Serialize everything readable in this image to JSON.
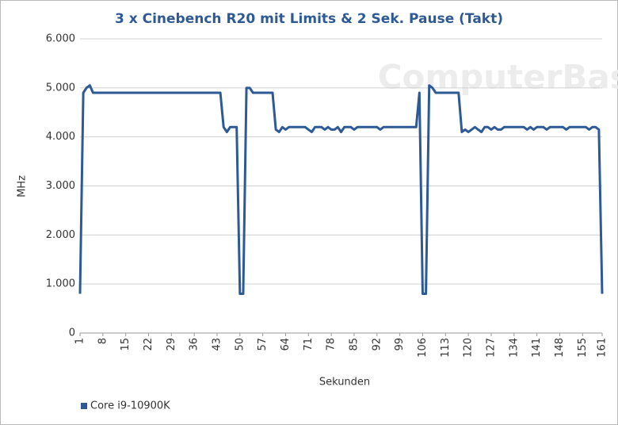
{
  "chart_data": {
    "type": "line",
    "title": "3 x Cinebench R20 mit Limits & 2 Sek. Pause (Takt)",
    "xlabel": "Sekunden",
    "ylabel": "MHz",
    "watermark": "ComputerBase",
    "x": [
      1,
      2,
      3,
      4,
      5,
      6,
      7,
      8,
      9,
      10,
      11,
      12,
      13,
      14,
      15,
      16,
      17,
      18,
      19,
      20,
      21,
      22,
      23,
      24,
      25,
      26,
      27,
      28,
      29,
      30,
      31,
      32,
      33,
      34,
      35,
      36,
      37,
      38,
      39,
      40,
      41,
      42,
      43,
      44,
      45,
      46,
      47,
      48,
      49,
      50,
      51,
      52,
      53,
      54,
      55,
      56,
      57,
      58,
      59,
      60,
      61,
      62,
      63,
      64,
      65,
      66,
      67,
      68,
      69,
      70,
      71,
      72,
      73,
      74,
      75,
      76,
      77,
      78,
      79,
      80,
      81,
      82,
      83,
      84,
      85,
      86,
      87,
      88,
      89,
      90,
      91,
      92,
      93,
      94,
      95,
      96,
      97,
      98,
      99,
      100,
      101,
      102,
      103,
      104,
      105,
      106,
      107,
      108,
      109,
      110,
      111,
      112,
      113,
      114,
      115,
      116,
      117,
      118,
      119,
      120,
      121,
      122,
      123,
      124,
      125,
      126,
      127,
      128,
      129,
      130,
      131,
      132,
      133,
      134,
      135,
      136,
      137,
      138,
      139,
      140,
      141,
      142,
      143,
      144,
      145,
      146,
      147,
      148,
      149,
      150,
      151,
      152,
      153,
      154,
      155,
      156,
      157,
      158,
      159,
      160,
      161
    ],
    "series": [
      {
        "name": "Core i9-10900K",
        "color": "#2d5a96",
        "values": [
          800,
          4900,
          5000,
          5050,
          4900,
          4900,
          4900,
          4900,
          4900,
          4900,
          4900,
          4900,
          4900,
          4900,
          4900,
          4900,
          4900,
          4900,
          4900,
          4900,
          4900,
          4900,
          4900,
          4900,
          4900,
          4900,
          4900,
          4900,
          4900,
          4900,
          4900,
          4900,
          4900,
          4900,
          4900,
          4900,
          4900,
          4900,
          4900,
          4900,
          4900,
          4900,
          4900,
          4900,
          4200,
          4100,
          4200,
          4200,
          4200,
          800,
          800,
          5000,
          5000,
          4900,
          4900,
          4900,
          4900,
          4900,
          4900,
          4900,
          4150,
          4100,
          4200,
          4150,
          4200,
          4200,
          4200,
          4200,
          4200,
          4200,
          4150,
          4100,
          4200,
          4200,
          4200,
          4150,
          4200,
          4150,
          4150,
          4200,
          4100,
          4200,
          4200,
          4200,
          4150,
          4200,
          4200,
          4200,
          4200,
          4200,
          4200,
          4200,
          4150,
          4200,
          4200,
          4200,
          4200,
          4200,
          4200,
          4200,
          4200,
          4200,
          4200,
          4200,
          4900,
          800,
          800,
          5050,
          5000,
          4900,
          4900,
          4900,
          4900,
          4900,
          4900,
          4900,
          4900,
          4100,
          4150,
          4100,
          4150,
          4200,
          4150,
          4100,
          4200,
          4200,
          4150,
          4200,
          4150,
          4150,
          4200,
          4200,
          4200,
          4200,
          4200,
          4200,
          4200,
          4150,
          4200,
          4150,
          4200,
          4200,
          4200,
          4150,
          4200,
          4200,
          4200,
          4200,
          4200,
          4150,
          4200,
          4200,
          4200,
          4200,
          4200,
          4200,
          4150,
          4200,
          4200,
          4150,
          800
        ]
      }
    ],
    "xlim": [
      1,
      161
    ],
    "xticks": [
      1,
      8,
      15,
      22,
      29,
      36,
      43,
      50,
      57,
      64,
      71,
      78,
      85,
      92,
      99,
      106,
      113,
      120,
      127,
      134,
      141,
      148,
      155,
      161
    ],
    "ylim": [
      0,
      6000
    ],
    "yticks": [
      0,
      {
        "value": 1000,
        "label": "1.000"
      },
      {
        "value": 2000,
        "label": "2.000"
      },
      {
        "value": 3000,
        "label": "3.000"
      },
      {
        "value": 4000,
        "label": "4.000"
      },
      {
        "value": 5000,
        "label": "5.000"
      },
      {
        "value": 6000,
        "label": "6.000"
      }
    ],
    "grid": true,
    "legend": "bottom-left"
  }
}
